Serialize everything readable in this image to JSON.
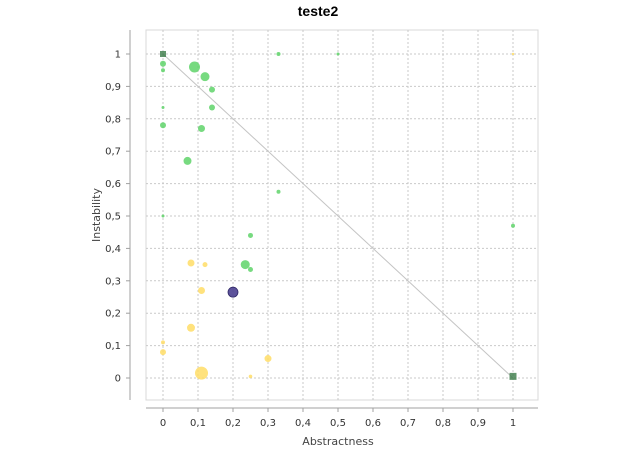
{
  "chart_data": {
    "type": "scatter",
    "title": "teste2",
    "xlabel": "Abstractness",
    "ylabel": "Instability",
    "xlim": [
      -0.1,
      1.08
    ],
    "ylim": [
      -0.09,
      1.08
    ],
    "xticks": [
      "0",
      "0,1",
      "0,2",
      "0,3",
      "0,4",
      "0,5",
      "0,6",
      "0,7",
      "0,8",
      "0,9",
      "1"
    ],
    "yticks": [
      "0",
      "0,1",
      "0,2",
      "0,3",
      "0,4",
      "0,5",
      "0,6",
      "0,7",
      "0,8",
      "0,9",
      "1"
    ],
    "grid": true,
    "main_sequence": [
      [
        0,
        1
      ],
      [
        1,
        0
      ]
    ],
    "colors": {
      "green": "#5fd36a",
      "yellow": "#ffdd66",
      "dark_blue": "#4a3f8f",
      "dark_green": "#3a7a47"
    },
    "points": [
      {
        "x": 0.0,
        "y": 1.0,
        "color": "dark_green",
        "size": 3
      },
      {
        "x": 0.0,
        "y": 0.97,
        "color": "green",
        "size": 3
      },
      {
        "x": 0.0,
        "y": 0.95,
        "color": "green",
        "size": 2
      },
      {
        "x": 0.0,
        "y": 0.835,
        "color": "green",
        "size": 1.5
      },
      {
        "x": 0.0,
        "y": 0.78,
        "color": "green",
        "size": 3
      },
      {
        "x": 0.0,
        "y": 0.5,
        "color": "green",
        "size": 1.5
      },
      {
        "x": 0.09,
        "y": 0.96,
        "color": "green",
        "size": 5.5
      },
      {
        "x": 0.12,
        "y": 0.93,
        "color": "green",
        "size": 4.5
      },
      {
        "x": 0.14,
        "y": 0.89,
        "color": "green",
        "size": 3
      },
      {
        "x": 0.14,
        "y": 0.835,
        "color": "green",
        "size": 3
      },
      {
        "x": 0.11,
        "y": 0.77,
        "color": "green",
        "size": 3.5
      },
      {
        "x": 0.07,
        "y": 0.67,
        "color": "green",
        "size": 4
      },
      {
        "x": 0.33,
        "y": 1.0,
        "color": "green",
        "size": 2
      },
      {
        "x": 0.5,
        "y": 1.0,
        "color": "green",
        "size": 1.5
      },
      {
        "x": 1.0,
        "y": 1.0,
        "color": "yellow",
        "size": 1.2
      },
      {
        "x": 0.33,
        "y": 0.575,
        "color": "green",
        "size": 2
      },
      {
        "x": 0.25,
        "y": 0.44,
        "color": "green",
        "size": 2.5
      },
      {
        "x": 0.235,
        "y": 0.35,
        "color": "green",
        "size": 4.5
      },
      {
        "x": 0.25,
        "y": 0.335,
        "color": "green",
        "size": 2.5
      },
      {
        "x": 1.0,
        "y": 0.47,
        "color": "green",
        "size": 2
      },
      {
        "x": 0.08,
        "y": 0.355,
        "color": "yellow",
        "size": 3.5
      },
      {
        "x": 0.12,
        "y": 0.35,
        "color": "yellow",
        "size": 2.5
      },
      {
        "x": 0.11,
        "y": 0.27,
        "color": "yellow",
        "size": 3.5
      },
      {
        "x": 0.2,
        "y": 0.265,
        "color": "dark_blue",
        "size": 5
      },
      {
        "x": 0.08,
        "y": 0.155,
        "color": "yellow",
        "size": 4
      },
      {
        "x": 0.0,
        "y": 0.11,
        "color": "yellow",
        "size": 2
      },
      {
        "x": 0.0,
        "y": 0.08,
        "color": "yellow",
        "size": 3
      },
      {
        "x": 0.3,
        "y": 0.06,
        "color": "yellow",
        "size": 3.5
      },
      {
        "x": 0.11,
        "y": 0.015,
        "color": "yellow",
        "size": 6.5
      },
      {
        "x": 0.25,
        "y": 0.005,
        "color": "yellow",
        "size": 1.8
      },
      {
        "x": 1.0,
        "y": 0.005,
        "color": "dark_green",
        "size": 3.5
      }
    ]
  }
}
